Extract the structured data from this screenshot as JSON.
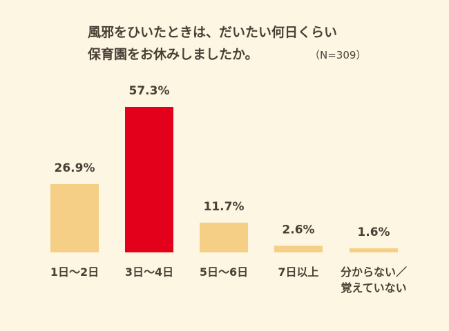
{
  "chart_data": {
    "type": "bar",
    "title_lines": [
      "風邪をひいたときは、だいたい何日くらい",
      "保育園をお休みしましたか。"
    ],
    "note": "（N=309）",
    "categories": [
      [
        "1日〜2日"
      ],
      [
        "3日〜4日"
      ],
      [
        "5日〜6日"
      ],
      [
        "7日以上"
      ],
      [
        "分からない／",
        "覚えていない"
      ]
    ],
    "values": [
      26.9,
      57.3,
      11.7,
      2.6,
      1.6
    ],
    "value_labels": [
      "26.9%",
      "57.3%",
      "11.7%",
      "2.6%",
      "1.6%"
    ],
    "ylim": [
      0,
      57.3
    ],
    "highlight_index": 1,
    "colors": {
      "bar": "#f6cf86",
      "highlight": "#e2001a",
      "background": "#fdf6e3",
      "text": "#4a3f35"
    }
  }
}
